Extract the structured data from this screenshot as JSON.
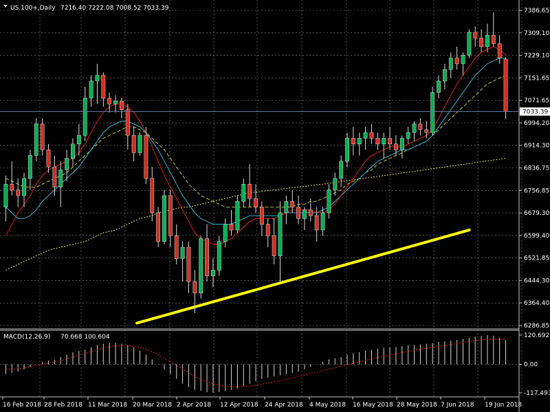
{
  "header": {
    "symbol": "US.100+,Daily",
    "ohlc": "7216.40 7222.08 7008.52 7033.39"
  },
  "price_axis": {
    "labels": [
      "7386.65",
      "7309.10",
      "7229.10",
      "7151.65",
      "7071.65",
      "6994.20",
      "6914.30",
      "6836.75",
      "6756.85",
      "6679.30",
      "6599.40",
      "6521.85",
      "6444.30",
      "6364.40",
      "6286.85"
    ],
    "current": "7033.39"
  },
  "macd": {
    "title": "MACD(12,26,9)",
    "values": "70.668 100.604",
    "axis_labels": [
      "120.692",
      "0.00",
      "-117.493"
    ]
  },
  "time_axis": {
    "labels": [
      "16 Feb 2018",
      "28 Feb 2018",
      "11 Mar 2018",
      "20 Mar 2018",
      "2 Apr 2018",
      "12 Apr 2018",
      "24 Apr 2018",
      "4 May 2018",
      "16 May 2018",
      "28 May 2018",
      "7 Jun 2018",
      "19 Jun 2018"
    ]
  },
  "colors": {
    "background": "#000000",
    "bull": "#00b050",
    "bear": "#d03020",
    "grid": "#8a8a8a",
    "ma_fast": "#e0201f",
    "ma_mid": "#35b7d6",
    "ma_slow": "#b8d030",
    "ma_200": "#e8e860",
    "trendline": "#ffff00",
    "macd_hist": "#d8d8d8",
    "macd_signal": "#e0201f"
  },
  "chart_data": {
    "type": "candlestick",
    "ylim": [
      6286.85,
      7386.65
    ],
    "candles": [
      [
        6700,
        6810,
        6650,
        6780
      ],
      [
        6780,
        6860,
        6740,
        6760
      ],
      [
        6760,
        6800,
        6700,
        6740
      ],
      [
        6740,
        6820,
        6700,
        6800
      ],
      [
        6800,
        6900,
        6760,
        6880
      ],
      [
        6880,
        7010,
        6860,
        6990
      ],
      [
        6990,
        7010,
        6880,
        6900
      ],
      [
        6900,
        6920,
        6820,
        6840
      ],
      [
        6840,
        6880,
        6740,
        6770
      ],
      [
        6770,
        6860,
        6700,
        6830
      ],
      [
        6830,
        6900,
        6790,
        6870
      ],
      [
        6870,
        6940,
        6840,
        6920
      ],
      [
        6920,
        6990,
        6880,
        6950
      ],
      [
        6950,
        7120,
        6930,
        7080
      ],
      [
        7080,
        7160,
        7050,
        7140
      ],
      [
        7140,
        7200,
        7060,
        7160
      ],
      [
        7160,
        7170,
        7050,
        7080
      ],
      [
        7080,
        7100,
        7030,
        7060
      ],
      [
        7060,
        7090,
        7030,
        7070
      ],
      [
        7070,
        7080,
        7010,
        7040
      ],
      [
        7040,
        7060,
        6900,
        6950
      ],
      [
        6950,
        6980,
        6860,
        6890
      ],
      [
        6890,
        6960,
        6880,
        6950
      ],
      [
        6950,
        6980,
        6780,
        6800
      ],
      [
        6800,
        6840,
        6650,
        6680
      ],
      [
        6680,
        6700,
        6560,
        6580
      ],
      [
        6580,
        6760,
        6570,
        6740
      ],
      [
        6740,
        6760,
        6560,
        6600
      ],
      [
        6600,
        6640,
        6500,
        6520
      ],
      [
        6520,
        6580,
        6440,
        6560
      ],
      [
        6560,
        6580,
        6400,
        6440
      ],
      [
        6440,
        6480,
        6330,
        6400
      ],
      [
        6400,
        6600,
        6380,
        6590
      ],
      [
        6590,
        6640,
        6440,
        6460
      ],
      [
        6460,
        6520,
        6420,
        6480
      ],
      [
        6480,
        6600,
        6460,
        6580
      ],
      [
        6580,
        6660,
        6560,
        6640
      ],
      [
        6640,
        6690,
        6600,
        6620
      ],
      [
        6620,
        6740,
        6610,
        6720
      ],
      [
        6720,
        6800,
        6700,
        6780
      ],
      [
        6780,
        6850,
        6700,
        6730
      ],
      [
        6730,
        6780,
        6680,
        6700
      ],
      [
        6700,
        6720,
        6600,
        6640
      ],
      [
        6640,
        6660,
        6560,
        6600
      ],
      [
        6600,
        6660,
        6500,
        6530
      ],
      [
        6530,
        6720,
        6440,
        6680
      ],
      [
        6680,
        6740,
        6640,
        6720
      ],
      [
        6720,
        6760,
        6680,
        6700
      ],
      [
        6700,
        6740,
        6640,
        6660
      ],
      [
        6660,
        6700,
        6620,
        6690
      ],
      [
        6690,
        6730,
        6650,
        6670
      ],
      [
        6670,
        6700,
        6580,
        6620
      ],
      [
        6620,
        6700,
        6600,
        6680
      ],
      [
        6680,
        6780,
        6660,
        6760
      ],
      [
        6760,
        6820,
        6740,
        6800
      ],
      [
        6800,
        6880,
        6770,
        6860
      ],
      [
        6860,
        6960,
        6840,
        6940
      ],
      [
        6940,
        6980,
        6880,
        6920
      ],
      [
        6920,
        6960,
        6880,
        6940
      ],
      [
        6940,
        6980,
        6900,
        6960
      ],
      [
        6960,
        6990,
        6920,
        6940
      ],
      [
        6940,
        6960,
        6900,
        6920
      ],
      [
        6920,
        6960,
        6870,
        6940
      ],
      [
        6940,
        6980,
        6900,
        6920
      ],
      [
        6920,
        6950,
        6880,
        6900
      ],
      [
        6900,
        6950,
        6870,
        6940
      ],
      [
        6940,
        6980,
        6920,
        6960
      ],
      [
        6960,
        7000,
        6930,
        6990
      ],
      [
        6990,
        7010,
        6950,
        6970
      ],
      [
        6970,
        7000,
        6940,
        6960
      ],
      [
        6960,
        7120,
        6950,
        7100
      ],
      [
        7100,
        7160,
        7080,
        7140
      ],
      [
        7140,
        7200,
        7110,
        7180
      ],
      [
        7180,
        7240,
        7150,
        7220
      ],
      [
        7220,
        7260,
        7180,
        7200
      ],
      [
        7200,
        7240,
        7160,
        7230
      ],
      [
        7230,
        7320,
        7220,
        7310
      ],
      [
        7310,
        7330,
        7260,
        7290
      ],
      [
        7290,
        7320,
        7240,
        7260
      ],
      [
        7260,
        7340,
        7240,
        7300
      ],
      [
        7300,
        7380,
        7260,
        7270
      ],
      [
        7270,
        7300,
        7200,
        7220
      ],
      [
        7216.4,
        7222.08,
        7008.52,
        7033.39
      ]
    ],
    "ma_fast": [
      6600,
      6640,
      6680,
      6710,
      6740,
      6780,
      6810,
      6830,
      6840,
      6850,
      6860,
      6870,
      6890,
      6920,
      6960,
      7000,
      7030,
      7050,
      7060,
      7060,
      7050,
      7030,
      7000,
      6960,
      6910,
      6860,
      6810,
      6770,
      6730,
      6690,
      6650,
      6610,
      6590,
      6580,
      6570,
      6570,
      6580,
      6590,
      6610,
      6630,
      6650,
      6660,
      6660,
      6660,
      6660,
      6670,
      6680,
      6690,
      6690,
      6690,
      6690,
      6680,
      6680,
      6690,
      6710,
      6740,
      6770,
      6800,
      6830,
      6860,
      6880,
      6890,
      6900,
      6910,
      6910,
      6910,
      6920,
      6930,
      6940,
      6950,
      6970,
      7010,
      7050,
      7090,
      7130,
      7160,
      7190,
      7220,
      7240,
      7250,
      7260,
      7250,
      7230
    ],
    "ma_mid": [
      6700,
      6680,
      6660,
      6660,
      6670,
      6690,
      6720,
      6740,
      6760,
      6780,
      6800,
      6820,
      6840,
      6870,
      6900,
      6930,
      6960,
      6980,
      6990,
      7000,
      7000,
      6990,
      6980,
      6960,
      6930,
      6900,
      6860,
      6820,
      6780,
      6740,
      6710,
      6680,
      6660,
      6650,
      6640,
      6640,
      6640,
      6640,
      6650,
      6660,
      6670,
      6670,
      6670,
      6670,
      6670,
      6670,
      6680,
      6680,
      6680,
      6680,
      6680,
      6680,
      6690,
      6700,
      6720,
      6740,
      6760,
      6780,
      6800,
      6820,
      6840,
      6860,
      6870,
      6880,
      6890,
      6900,
      6900,
      6910,
      6920,
      6930,
      6950,
      6980,
      7010,
      7040,
      7070,
      7100,
      7130,
      7160,
      7180,
      7200,
      7210,
      7220,
      7220
    ],
    "ma_slow": [
      6800,
      6790,
      6780,
      6770,
      6770,
      6770,
      6780,
      6790,
      6800,
      6810,
      6820,
      6840,
      6860,
      6880,
      6900,
      6920,
      6940,
      6950,
      6960,
      6970,
      6980,
      6980,
      6970,
      6960,
      6940,
      6920,
      6900,
      6870,
      6840,
      6810,
      6780,
      6760,
      6740,
      6730,
      6720,
      6710,
      6700,
      6700,
      6700,
      6700,
      6700,
      6700,
      6700,
      6700,
      6700,
      6700,
      6700,
      6700,
      6710,
      6710,
      6720,
      6720,
      6730,
      6740,
      6750,
      6760,
      6780,
      6790,
      6800,
      6820,
      6830,
      6850,
      6860,
      6870,
      6880,
      6890,
      6900,
      6910,
      6920,
      6930,
      6950,
      6970,
      6990,
      7010,
      7030,
      7050,
      7070,
      7090,
      7110,
      7130,
      7140,
      7150,
      7160
    ],
    "ma_200": [
      6480,
      6490,
      6500,
      6510,
      6520,
      6530,
      6540,
      6550,
      6555,
      6560,
      6565,
      6570,
      6575,
      6580,
      6590,
      6600,
      6610,
      6615,
      6620,
      6630,
      6640,
      6650,
      6660,
      6665,
      6670,
      6680,
      6685,
      6690,
      6695,
      6700,
      6700,
      6705,
      6710,
      6715,
      6720,
      6725,
      6730,
      6735,
      6740,
      6745,
      6750,
      6752,
      6755,
      6758,
      6760,
      6762,
      6765,
      6768,
      6770,
      6772,
      6775,
      6778,
      6780,
      6783,
      6786,
      6789,
      6792,
      6795,
      6798,
      6801,
      6804,
      6807,
      6810,
      6813,
      6816,
      6819,
      6822,
      6825,
      6828,
      6831,
      6834,
      6837,
      6840,
      6843,
      6846,
      6849,
      6852,
      6855,
      6858,
      6861,
      6864,
      6867,
      6870
    ],
    "trendline": [
      [
        0.265,
        6295
      ],
      [
        0.922,
        6620
      ]
    ],
    "macd_hist": [
      -40,
      -35,
      -30,
      -20,
      -10,
      0,
      10,
      15,
      20,
      30,
      40,
      50,
      55,
      60,
      70,
      80,
      85,
      90,
      88,
      85,
      80,
      70,
      55,
      40,
      20,
      0,
      -20,
      -40,
      -60,
      -80,
      -95,
      -105,
      -110,
      -115,
      -117,
      -115,
      -110,
      -105,
      -100,
      -90,
      -80,
      -70,
      -60,
      -55,
      -50,
      -45,
      -40,
      -35,
      -30,
      -20,
      -10,
      0,
      10,
      20,
      25,
      30,
      40,
      45,
      50,
      55,
      60,
      65,
      68,
      70,
      72,
      75,
      78,
      80,
      82,
      85,
      88,
      92,
      95,
      98,
      100,
      105,
      110,
      115,
      118,
      120,
      118,
      110,
      100
    ],
    "macd_signal": [
      -20,
      -20,
      -18,
      -15,
      -10,
      -5,
      0,
      5,
      10,
      15,
      22,
      30,
      38,
      45,
      52,
      60,
      66,
      72,
      76,
      78,
      78,
      75,
      70,
      62,
      52,
      40,
      25,
      10,
      -5,
      -20,
      -35,
      -50,
      -62,
      -72,
      -80,
      -86,
      -90,
      -92,
      -93,
      -92,
      -90,
      -86,
      -82,
      -77,
      -72,
      -67,
      -62,
      -56,
      -50,
      -44,
      -38,
      -32,
      -26,
      -20,
      -14,
      -8,
      -2,
      4,
      10,
      16,
      22,
      28,
      33,
      38,
      43,
      48,
      53,
      58,
      62,
      66,
      70,
      74,
      78,
      82,
      86,
      90,
      94,
      98,
      101,
      103,
      104,
      103,
      102
    ],
    "macd_range": [
      -117.493,
      120.692
    ]
  }
}
